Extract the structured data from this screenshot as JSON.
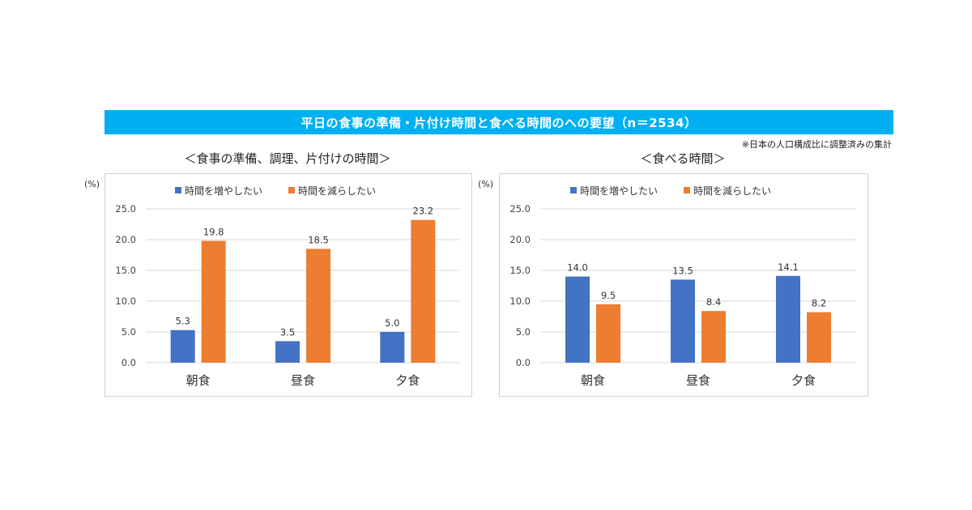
{
  "banner": {
    "title": "平日の食事の準備・片付け時間と食べる時間のへの要望（n＝2534）"
  },
  "note": "※日本の人口構成比に調整済みの集計",
  "colors": {
    "increase": "#4472c4",
    "decrease": "#ed7d31",
    "grid": "#d9d9d9",
    "banner": "#00b0f0"
  },
  "chart_data": [
    {
      "type": "bar",
      "title": "＜食事の準備、調理、片付けの時間＞",
      "ylabel": "(%)",
      "ylim": [
        0,
        25
      ],
      "yticks": [
        "0.0",
        "5.0",
        "10.0",
        "15.0",
        "20.0",
        "25.0"
      ],
      "categories": [
        "朝食",
        "昼食",
        "夕食"
      ],
      "series": [
        {
          "name": "時間を増やしたい",
          "values": [
            5.3,
            3.5,
            5.0
          ],
          "labels": [
            "5.3",
            "3.5",
            "5.0"
          ]
        },
        {
          "name": "時間を減らしたい",
          "values": [
            19.8,
            18.5,
            23.2
          ],
          "labels": [
            "19.8",
            "18.5",
            "23.2"
          ]
        }
      ],
      "legend": "top",
      "grid": true
    },
    {
      "type": "bar",
      "title": "＜食べる時間＞",
      "ylabel": "(%)",
      "ylim": [
        0,
        25
      ],
      "yticks": [
        "0.0",
        "5.0",
        "10.0",
        "15.0",
        "20.0",
        "25.0"
      ],
      "categories": [
        "朝食",
        "昼食",
        "夕食"
      ],
      "series": [
        {
          "name": "時間を増やしたい",
          "values": [
            14.0,
            13.5,
            14.1
          ],
          "labels": [
            "14.0",
            "13.5",
            "14.1"
          ]
        },
        {
          "name": "時間を減らしたい",
          "values": [
            9.5,
            8.4,
            8.2
          ],
          "labels": [
            "9.5",
            "8.4",
            "8.2"
          ]
        }
      ],
      "legend": "top",
      "grid": true
    }
  ]
}
